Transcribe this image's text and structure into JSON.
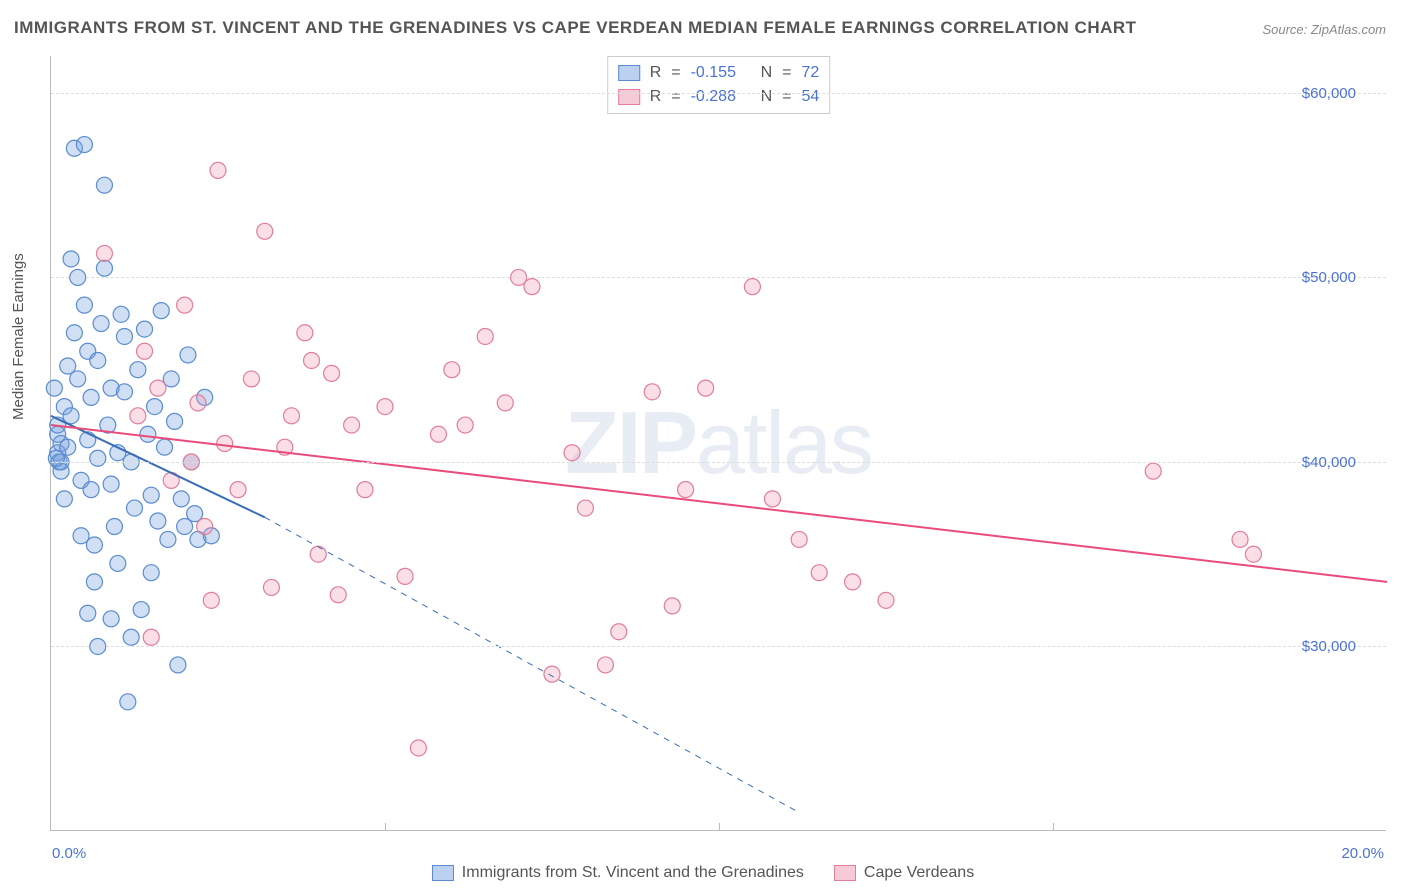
{
  "title": "IMMIGRANTS FROM ST. VINCENT AND THE GRENADINES VS CAPE VERDEAN MEDIAN FEMALE EARNINGS CORRELATION CHART",
  "source": "Source: ZipAtlas.com",
  "watermark_bold": "ZIP",
  "watermark_light": "atlas",
  "ylabel": "Median Female Earnings",
  "chart": {
    "type": "scatter",
    "xlim": [
      0,
      20
    ],
    "ylim": [
      20000,
      62000
    ],
    "x_start_label": "0.0%",
    "x_end_label": "20.0%",
    "xtick_positions": [
      5,
      10,
      15
    ],
    "yticks": [
      30000,
      40000,
      50000,
      60000
    ],
    "ytick_labels": [
      "$30,000",
      "$40,000",
      "$50,000",
      "$60,000"
    ],
    "background_color": "#ffffff",
    "grid_color": "#dddddd",
    "axis_color": "#bbbbbb",
    "marker_radius": 8,
    "marker_stroke_width": 1.2,
    "trend_line_width": 2,
    "series": [
      {
        "name": "Immigrants from St. Vincent and the Grenadines",
        "fill": "rgba(121, 162, 224, 0.35)",
        "stroke": "#5a8cd0",
        "trend_stroke": "#3a6db8",
        "swatch_fill": "rgba(121, 162, 224, 0.5)",
        "swatch_border": "#5a8cd0",
        "R": "-0.155",
        "N": "72",
        "trend": {
          "x1": 0,
          "y1": 42500,
          "x2": 3.2,
          "y2": 37000,
          "x2_dash": 11.2,
          "y2_dash": 21000
        },
        "points": [
          [
            0.05,
            44000
          ],
          [
            0.1,
            40500
          ],
          [
            0.1,
            41500
          ],
          [
            0.1,
            42000
          ],
          [
            0.12,
            40000
          ],
          [
            0.15,
            41000
          ],
          [
            0.15,
            39500
          ],
          [
            0.2,
            43000
          ],
          [
            0.2,
            38000
          ],
          [
            0.25,
            40800
          ],
          [
            0.25,
            45200
          ],
          [
            0.3,
            42500
          ],
          [
            0.3,
            51000
          ],
          [
            0.35,
            57000
          ],
          [
            0.35,
            47000
          ],
          [
            0.4,
            50000
          ],
          [
            0.4,
            44500
          ],
          [
            0.45,
            39000
          ],
          [
            0.45,
            36000
          ],
          [
            0.5,
            57200
          ],
          [
            0.5,
            48500
          ],
          [
            0.55,
            46000
          ],
          [
            0.55,
            41200
          ],
          [
            0.6,
            43500
          ],
          [
            0.6,
            38500
          ],
          [
            0.65,
            35500
          ],
          [
            0.65,
            33500
          ],
          [
            0.7,
            40200
          ],
          [
            0.7,
            45500
          ],
          [
            0.75,
            47500
          ],
          [
            0.8,
            55000
          ],
          [
            0.8,
            50500
          ],
          [
            0.85,
            42000
          ],
          [
            0.9,
            44000
          ],
          [
            0.9,
            38800
          ],
          [
            0.95,
            36500
          ],
          [
            1.0,
            40500
          ],
          [
            1.05,
            48000
          ],
          [
            1.1,
            43800
          ],
          [
            1.1,
            46800
          ],
          [
            1.2,
            40000
          ],
          [
            1.2,
            30500
          ],
          [
            1.25,
            37500
          ],
          [
            1.3,
            45000
          ],
          [
            1.35,
            32000
          ],
          [
            1.4,
            47200
          ],
          [
            1.45,
            41500
          ],
          [
            1.5,
            38200
          ],
          [
            1.5,
            34000
          ],
          [
            1.55,
            43000
          ],
          [
            1.6,
            36800
          ],
          [
            1.65,
            48200
          ],
          [
            1.7,
            40800
          ],
          [
            1.75,
            35800
          ],
          [
            1.8,
            44500
          ],
          [
            1.85,
            42200
          ],
          [
            1.9,
            29000
          ],
          [
            1.95,
            38000
          ],
          [
            2.0,
            36500
          ],
          [
            2.05,
            45800
          ],
          [
            2.1,
            40000
          ],
          [
            2.15,
            37200
          ],
          [
            2.2,
            35800
          ],
          [
            2.3,
            43500
          ],
          [
            2.4,
            36000
          ],
          [
            1.15,
            27000
          ],
          [
            0.9,
            31500
          ],
          [
            0.7,
            30000
          ],
          [
            0.55,
            31800
          ],
          [
            1.0,
            34500
          ],
          [
            0.15,
            40000
          ],
          [
            0.08,
            40200
          ]
        ]
      },
      {
        "name": "Cape Verdeans",
        "fill": "rgba(240, 150, 175, 0.30)",
        "stroke": "#e27d9a",
        "trend_stroke": "#e94b7a",
        "swatch_fill": "rgba(240, 150, 175, 0.5)",
        "swatch_border": "#e27d9a",
        "R": "-0.288",
        "N": "54",
        "trend": {
          "x1": 0,
          "y1": 42000,
          "x2": 20,
          "y2": 33500
        },
        "points": [
          [
            0.8,
            51300
          ],
          [
            1.3,
            42500
          ],
          [
            1.4,
            46000
          ],
          [
            1.5,
            30500
          ],
          [
            1.6,
            44000
          ],
          [
            1.8,
            39000
          ],
          [
            2.0,
            48500
          ],
          [
            2.2,
            43200
          ],
          [
            2.3,
            36500
          ],
          [
            2.4,
            32500
          ],
          [
            2.5,
            55800
          ],
          [
            2.6,
            41000
          ],
          [
            2.8,
            38500
          ],
          [
            3.0,
            44500
          ],
          [
            3.2,
            52500
          ],
          [
            3.3,
            33200
          ],
          [
            3.5,
            40800
          ],
          [
            3.6,
            42500
          ],
          [
            3.8,
            47000
          ],
          [
            4.0,
            35000
          ],
          [
            4.2,
            44800
          ],
          [
            4.5,
            42000
          ],
          [
            4.7,
            38500
          ],
          [
            5.0,
            43000
          ],
          [
            5.3,
            33800
          ],
          [
            5.5,
            24500
          ],
          [
            5.8,
            41500
          ],
          [
            6.0,
            45000
          ],
          [
            6.5,
            46800
          ],
          [
            6.8,
            43200
          ],
          [
            7.2,
            49500
          ],
          [
            7.5,
            28500
          ],
          [
            7.8,
            40500
          ],
          [
            8.0,
            37500
          ],
          [
            8.3,
            29000
          ],
          [
            8.5,
            30800
          ],
          [
            9.0,
            43800
          ],
          [
            9.3,
            32200
          ],
          [
            9.5,
            38500
          ],
          [
            10.5,
            49500
          ],
          [
            10.8,
            38000
          ],
          [
            11.2,
            35800
          ],
          [
            11.5,
            34000
          ],
          [
            9.8,
            44000
          ],
          [
            12.0,
            33500
          ],
          [
            12.5,
            32500
          ],
          [
            7.0,
            50000
          ],
          [
            16.5,
            39500
          ],
          [
            17.8,
            35800
          ],
          [
            18.0,
            35000
          ],
          [
            6.2,
            42000
          ],
          [
            4.3,
            32800
          ],
          [
            3.9,
            45500
          ],
          [
            2.1,
            40000
          ]
        ]
      }
    ]
  },
  "legend": {
    "r_label": "R",
    "n_label": "N",
    "eq": "=",
    "value_color": "#4a72d4",
    "label_color": "#555555"
  }
}
